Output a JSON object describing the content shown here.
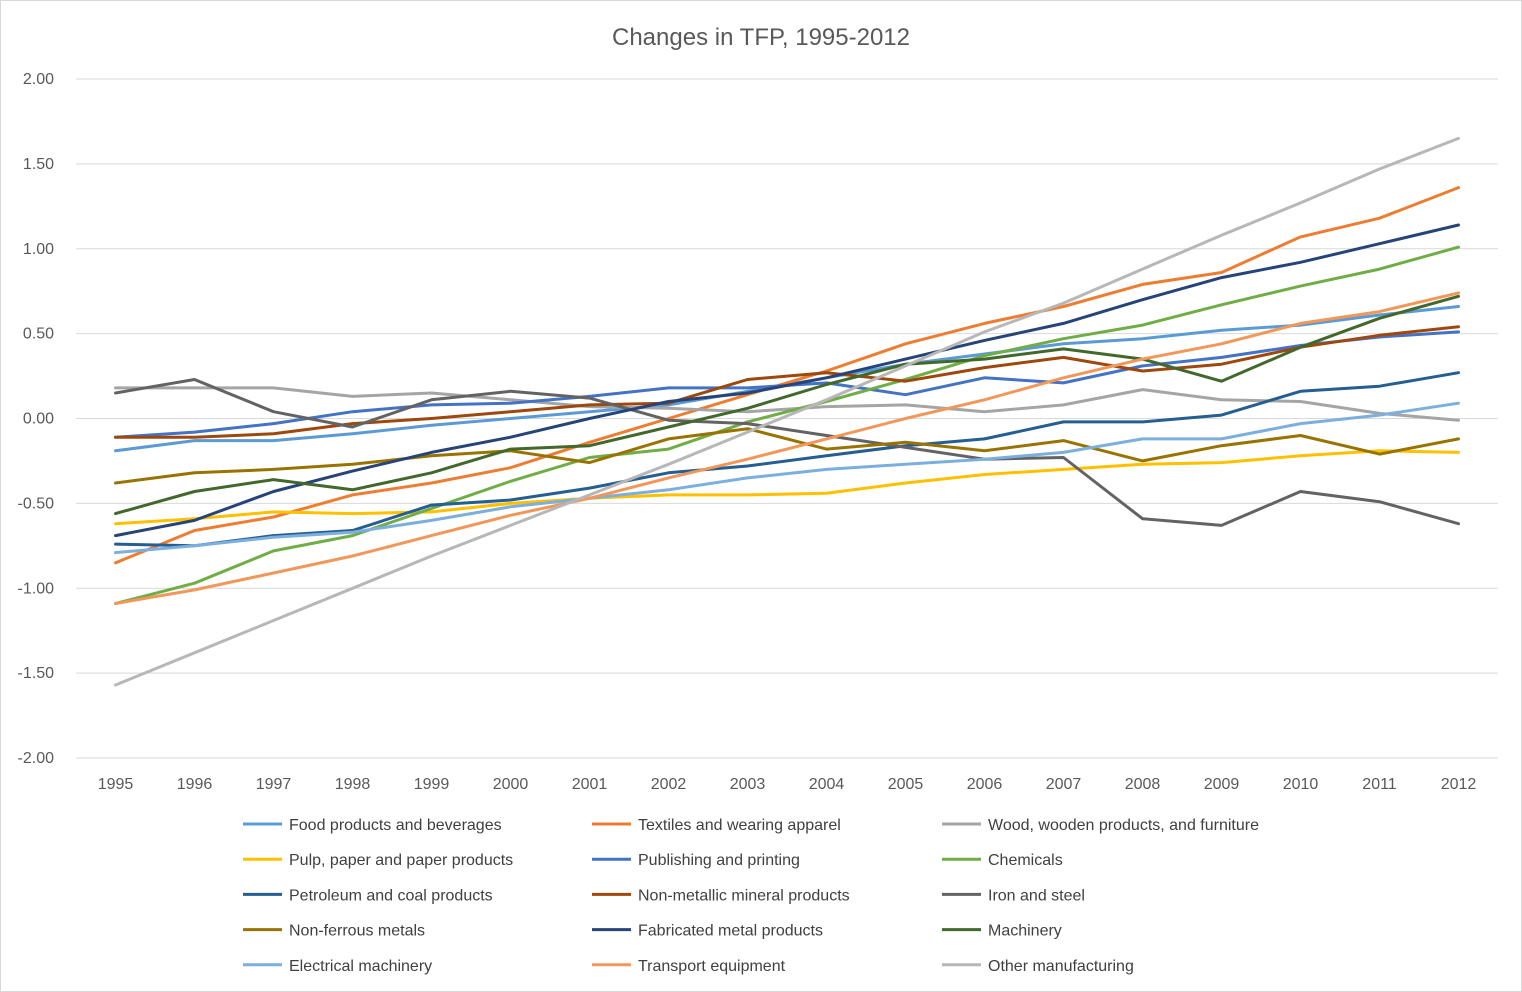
{
  "chart_data": {
    "type": "line",
    "title": "Changes in TFP, 1995-2012",
    "xlabel": "",
    "ylabel": "",
    "ylim": [
      -2.0,
      2.0
    ],
    "yticks": [
      2.0,
      1.5,
      1.0,
      0.5,
      0.0,
      -0.5,
      -1.0,
      -1.5,
      -2.0
    ],
    "ytick_labels": [
      "2.00",
      "1.50",
      "1.00",
      "0.50",
      "0.00",
      "-0.50",
      "-1.00",
      "-1.50",
      "-2.00"
    ],
    "categories": [
      "1995",
      "1996",
      "1997",
      "1998",
      "1999",
      "2000",
      "2001",
      "2002",
      "2003",
      "2004",
      "2005",
      "2006",
      "2007",
      "2008",
      "2009",
      "2010",
      "2011",
      "2012"
    ],
    "grid": true,
    "legend_position": "bottom",
    "series": [
      {
        "name": "Food products and beverages",
        "color": "#5B9BD5",
        "values": [
          -0.19,
          -0.13,
          -0.13,
          -0.09,
          -0.04,
          0.0,
          0.04,
          0.08,
          0.16,
          0.24,
          0.32,
          0.38,
          0.44,
          0.47,
          0.52,
          0.55,
          0.61,
          0.66
        ]
      },
      {
        "name": "Textiles and wearing apparel",
        "color": "#ED7D31",
        "values": [
          -0.85,
          -0.66,
          -0.58,
          -0.45,
          -0.38,
          -0.29,
          -0.14,
          0.0,
          0.14,
          0.28,
          0.44,
          0.56,
          0.66,
          0.79,
          0.86,
          1.07,
          1.18,
          1.36
        ]
      },
      {
        "name": "Wood, wooden products, and furniture",
        "color": "#A5A5A5",
        "values": [
          0.18,
          0.18,
          0.18,
          0.13,
          0.15,
          0.11,
          0.07,
          0.06,
          0.04,
          0.07,
          0.08,
          0.04,
          0.08,
          0.17,
          0.11,
          0.1,
          0.03,
          -0.01
        ]
      },
      {
        "name": "Pulp, paper and paper products",
        "color": "#FFC000",
        "values": [
          -0.62,
          -0.59,
          -0.55,
          -0.56,
          -0.55,
          -0.5,
          -0.47,
          -0.45,
          -0.45,
          -0.44,
          -0.38,
          -0.33,
          -0.3,
          -0.27,
          -0.26,
          -0.22,
          -0.19,
          -0.2
        ]
      },
      {
        "name": "Publishing and printing",
        "color": "#4472C4",
        "values": [
          -0.11,
          -0.08,
          -0.03,
          0.04,
          0.08,
          0.09,
          0.13,
          0.18,
          0.18,
          0.21,
          0.14,
          0.24,
          0.21,
          0.31,
          0.36,
          0.43,
          0.48,
          0.51
        ]
      },
      {
        "name": "Chemicals",
        "color": "#70AD47",
        "values": [
          -1.09,
          -0.97,
          -0.78,
          -0.69,
          -0.53,
          -0.37,
          -0.23,
          -0.18,
          -0.02,
          0.1,
          0.23,
          0.37,
          0.47,
          0.55,
          0.67,
          0.78,
          0.88,
          1.01
        ]
      },
      {
        "name": "Petroleum and coal products",
        "color": "#255E91",
        "values": [
          -0.74,
          -0.75,
          -0.69,
          -0.66,
          -0.51,
          -0.48,
          -0.41,
          -0.32,
          -0.28,
          -0.22,
          -0.16,
          -0.12,
          -0.02,
          -0.02,
          0.02,
          0.16,
          0.19,
          0.27
        ]
      },
      {
        "name": "Non-metallic mineral products",
        "color": "#9E480E",
        "values": [
          -0.11,
          -0.11,
          -0.09,
          -0.03,
          0.0,
          0.04,
          0.08,
          0.09,
          0.23,
          0.27,
          0.22,
          0.3,
          0.36,
          0.28,
          0.32,
          0.42,
          0.49,
          0.54
        ]
      },
      {
        "name": "Iron and steel",
        "color": "#636363",
        "values": [
          0.15,
          0.23,
          0.04,
          -0.05,
          0.11,
          0.16,
          0.12,
          -0.01,
          -0.03,
          -0.1,
          -0.17,
          -0.24,
          -0.23,
          -0.59,
          -0.63,
          -0.43,
          -0.49,
          -0.62
        ]
      },
      {
        "name": "Non-ferrous metals",
        "color": "#997300",
        "values": [
          -0.38,
          -0.32,
          -0.3,
          -0.27,
          -0.22,
          -0.19,
          -0.26,
          -0.12,
          -0.06,
          -0.18,
          -0.14,
          -0.19,
          -0.13,
          -0.25,
          -0.16,
          -0.1,
          -0.21,
          -0.12
        ]
      },
      {
        "name": "Fabricated metal products",
        "color": "#264478",
        "values": [
          -0.69,
          -0.6,
          -0.43,
          -0.31,
          -0.2,
          -0.11,
          0.0,
          0.1,
          0.15,
          0.24,
          0.35,
          0.46,
          0.56,
          0.7,
          0.83,
          0.92,
          1.03,
          1.14
        ]
      },
      {
        "name": "Machinery",
        "color": "#43682B",
        "values": [
          -0.56,
          -0.43,
          -0.36,
          -0.42,
          -0.32,
          -0.18,
          -0.16,
          -0.05,
          0.06,
          0.2,
          0.32,
          0.35,
          0.41,
          0.35,
          0.22,
          0.42,
          0.59,
          0.72
        ]
      },
      {
        "name": "Electrical machinery",
        "color": "#7CAFDD",
        "values": [
          -0.79,
          -0.75,
          -0.7,
          -0.67,
          -0.6,
          -0.52,
          -0.47,
          -0.42,
          -0.35,
          -0.3,
          -0.27,
          -0.24,
          -0.2,
          -0.12,
          -0.12,
          -0.03,
          0.02,
          0.09
        ]
      },
      {
        "name": "Transport equipment",
        "color": "#F1975A",
        "values": [
          -1.09,
          -1.01,
          -0.91,
          -0.81,
          -0.69,
          -0.57,
          -0.47,
          -0.35,
          -0.24,
          -0.12,
          0.0,
          0.11,
          0.24,
          0.35,
          0.44,
          0.56,
          0.63,
          0.74
        ]
      },
      {
        "name": "Other manufacturing",
        "color": "#B7B7B7",
        "values": [
          -1.57,
          -1.38,
          -1.19,
          -1.0,
          -0.81,
          -0.63,
          -0.45,
          -0.27,
          -0.08,
          0.11,
          0.31,
          0.51,
          0.68,
          0.88,
          1.08,
          1.27,
          1.47,
          1.65
        ]
      }
    ]
  }
}
